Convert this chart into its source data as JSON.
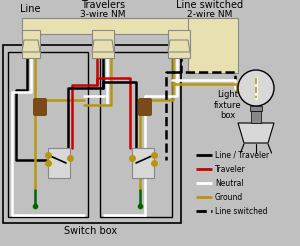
{
  "bg_color": "#c0c0c0",
  "colors": {
    "black": "#000000",
    "red": "#cc0000",
    "white": "#ffffff",
    "gold": "#b8960c",
    "green": "#006400",
    "brown": "#7a4a1a",
    "beige": "#e8e0b0",
    "gray": "#aaaaaa",
    "lgray": "#d8d8d8",
    "dgray": "#888888"
  },
  "labels": {
    "line": "Line",
    "travelers": "Travelers",
    "line_switched": "Line switched",
    "wire_nm3": "3-wire NM",
    "wire_nm2": "2-wire NM",
    "switch_box": "Switch box",
    "light_fixture": "Light\nfixture\nbox"
  },
  "legend": [
    {
      "label": "Line / Traveler",
      "color": "#000000",
      "linestyle": "-"
    },
    {
      "label": "Traveler",
      "color": "#cc0000",
      "linestyle": "-"
    },
    {
      "label": "Neutral",
      "color": "#ffffff",
      "linestyle": "-"
    },
    {
      "label": "Ground",
      "color": "#b8960c",
      "linestyle": "-"
    },
    {
      "label": "Line switched",
      "color": "#000000",
      "linestyle": "--"
    }
  ]
}
